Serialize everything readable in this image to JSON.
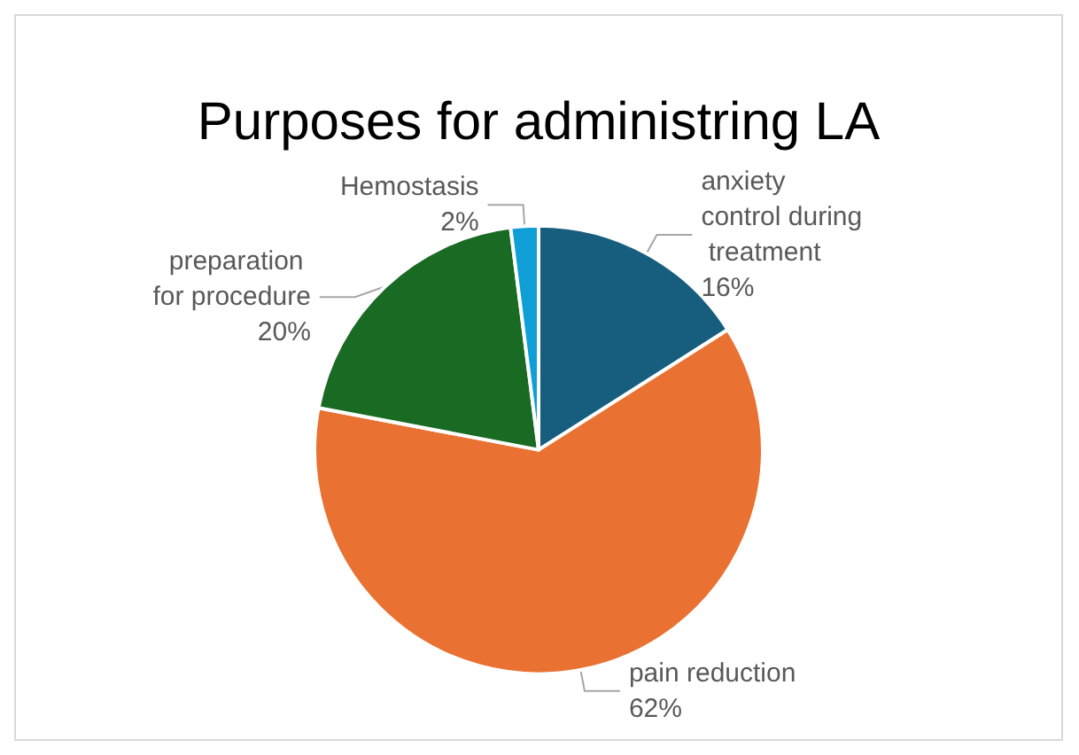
{
  "chart_data": {
    "type": "pie",
    "title": "Purposes for administring LA",
    "categories": [
      "anxiety control during treatment",
      "pain reduction",
      "preparation for procedure",
      "Hemostasis"
    ],
    "values": [
      16,
      62,
      20,
      2
    ],
    "value_labels": [
      "16%",
      "62%",
      "20%",
      "2%"
    ],
    "colors": [
      "#175e7e",
      "#e97132",
      "#196b24",
      "#0f9ed5"
    ],
    "legend": false
  }
}
